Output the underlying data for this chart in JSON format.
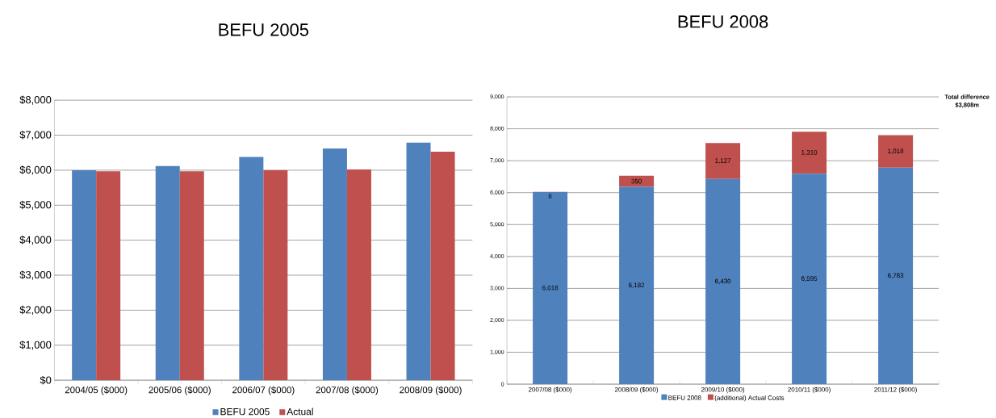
{
  "chart_data": [
    {
      "type": "bar",
      "title": "BEFU 2005",
      "categories": [
        "2004/05 ($000)",
        "2005/06 ($000)",
        "2006/07 ($000)",
        "2007/08 ($000)",
        "2008/09 ($000)"
      ],
      "series": [
        {
          "name": "BEFU 2005",
          "color": "#4f81bd",
          "values": [
            6000,
            6120,
            6380,
            6620,
            6790
          ]
        },
        {
          "name": "Actual",
          "color": "#c0504d",
          "values": [
            5970,
            5970,
            6000,
            6020,
            6530
          ]
        }
      ],
      "ylim": [
        0,
        8000
      ],
      "yticks": [
        {
          "value": 0,
          "label": "$0"
        },
        {
          "value": 1000,
          "label": "$1,000"
        },
        {
          "value": 2000,
          "label": "$2,000"
        },
        {
          "value": 3000,
          "label": "$3,000"
        },
        {
          "value": 4000,
          "label": "$4,000"
        },
        {
          "value": 5000,
          "label": "$5,000"
        },
        {
          "value": 6000,
          "label": "$6,000"
        },
        {
          "value": 7000,
          "label": "$7,000"
        },
        {
          "value": 8000,
          "label": "$8,000"
        }
      ],
      "grid": "y",
      "legend": "bottom"
    },
    {
      "type": "bar",
      "title": "BEFU 2008",
      "stacked": true,
      "categories": [
        "2007/08 ($000)",
        "2008/09 ($000)",
        "2009/10 ($000)",
        "2010/11 ($000)",
        "2011/12 ($000)"
      ],
      "series": [
        {
          "name": "BEFU 2008",
          "color": "#4f81bd",
          "values": [
            6018,
            6182,
            6430,
            6595,
            6783
          ],
          "value_labels": [
            "6,018",
            "6,182",
            "6,430",
            "6,595",
            "6,783"
          ]
        },
        {
          "name": "(additional) Actual Costs",
          "color": "#c0504d",
          "values": [
            6,
            350,
            1127,
            1310,
            1018
          ],
          "value_labels": [
            "6",
            "350",
            "1,127",
            "1,310",
            "1,018"
          ]
        }
      ],
      "ylim": [
        0,
        9000
      ],
      "yticks": [
        0,
        {
          "value": 1000,
          "label": "1,000"
        },
        {
          "value": 2000,
          "label": "2,000"
        },
        {
          "value": 3000,
          "label": "3,000"
        },
        {
          "value": 4000,
          "label": "4,000"
        },
        {
          "value": 5000,
          "label": "5,000"
        },
        {
          "value": 6000,
          "label": "6,000"
        },
        {
          "value": 7000,
          "label": "7,000"
        },
        {
          "value": 8000,
          "label": "8,000"
        },
        {
          "value": 9000,
          "label": "9,000"
        }
      ],
      "annotations": [
        "Total difference $3,808m"
      ],
      "grid": "y",
      "legend": "bottom"
    }
  ]
}
